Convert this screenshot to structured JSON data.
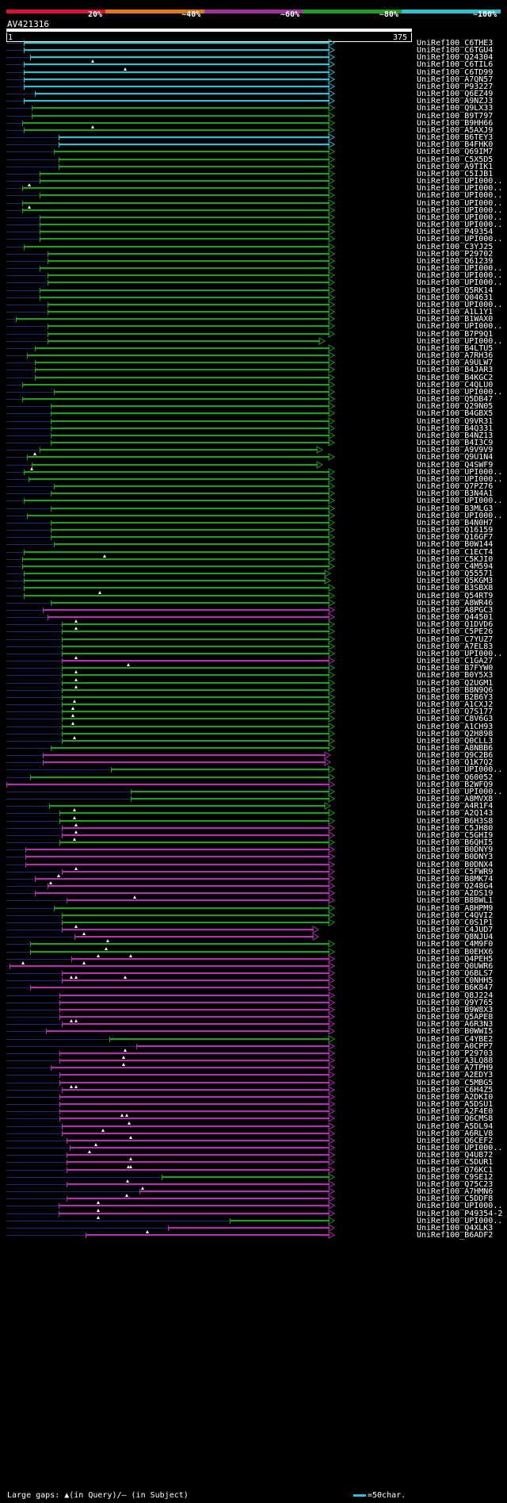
{
  "legend": {
    "colors": [
      "#d81430",
      "#e0761c",
      "#a0309c",
      "#229c22",
      "#30c0d0"
    ],
    "labels": [
      "20%",
      "~40%",
      "~60%",
      "~80%",
      "~100%"
    ]
  },
  "query": {
    "name": "AV421316",
    "start": "1",
    "end": "375"
  },
  "footer": {
    "text": "Large gaps: ▲(in Query)/– (in Subject)",
    "scale_key": "=50char."
  },
  "hits": [
    {
      "name": "UniRef100_C6THE3",
      "c": "c",
      "s": 30,
      "e": 420
    },
    {
      "name": "UniRef100_C6TGU4",
      "c": "c",
      "s": 30,
      "e": 420
    },
    {
      "name": "UniRef100_Q24304",
      "c": "c",
      "s": 38,
      "e": 420
    },
    {
      "name": "UniRef100_C6TIL6",
      "c": "c",
      "s": 30,
      "e": 420,
      "q": [
        117
      ]
    },
    {
      "name": "UniRef100_C6TD99",
      "c": "c",
      "s": 30,
      "e": 420,
      "q": [
        158
      ]
    },
    {
      "name": "UniRef100_A7QN57",
      "c": "c",
      "s": 30,
      "e": 420
    },
    {
      "name": "UniRef100_P93227",
      "c": "c",
      "s": 30,
      "e": 420
    },
    {
      "name": "UniRef100_Q6EZ49",
      "c": "c",
      "s": 44,
      "e": 420
    },
    {
      "name": "UniRef100_A9NZJ3",
      "c": "c",
      "s": 30,
      "e": 420
    },
    {
      "name": "UniRef100_Q9LX33",
      "c": "g",
      "s": 40,
      "e": 420
    },
    {
      "name": "UniRef100_B9T797",
      "c": "g",
      "s": 40,
      "e": 420
    },
    {
      "name": "UniRef100_B9HH66",
      "c": "g",
      "s": 28,
      "e": 420
    },
    {
      "name": "UniRef100_A5AXJ9",
      "c": "g",
      "s": 30,
      "e": 420,
      "q": [
        117
      ]
    },
    {
      "name": "UniRef100_B6TEY3",
      "c": "c",
      "s": 74,
      "e": 420
    },
    {
      "name": "UniRef100_B4FHK0",
      "c": "c",
      "s": 74,
      "e": 420
    },
    {
      "name": "UniRef100_Q69IM7",
      "c": "g",
      "s": 68,
      "e": 420
    },
    {
      "name": "UniRef100_C5X5D5",
      "c": "g",
      "s": 74,
      "e": 420
    },
    {
      "name": "UniRef100_A9TIK1",
      "c": "g",
      "s": 74,
      "e": 420
    },
    {
      "name": "UniRef100_C5IJB1",
      "c": "g",
      "s": 50,
      "e": 420
    },
    {
      "name": "UniRef100_UPI000..",
      "c": "g",
      "s": 50,
      "e": 420
    },
    {
      "name": "UniRef100_UPI000..",
      "c": "g",
      "s": 28,
      "e": 420,
      "q": [
        37
      ]
    },
    {
      "name": "UniRef100_UPI000..",
      "c": "g",
      "s": 50,
      "e": 420
    },
    {
      "name": "UniRef100_UPI000..",
      "c": "g",
      "s": 28,
      "e": 420
    },
    {
      "name": "UniRef100_UPI000..",
      "c": "g",
      "s": 28,
      "e": 420,
      "q": [
        37
      ]
    },
    {
      "name": "UniRef100_UPI000..",
      "c": "g",
      "s": 50,
      "e": 420
    },
    {
      "name": "UniRef100_UPI000..",
      "c": "g",
      "s": 50,
      "e": 420
    },
    {
      "name": "UniRef100_P49354",
      "c": "g",
      "s": 50,
      "e": 420
    },
    {
      "name": "UniRef100_UPI000..",
      "c": "g",
      "s": 50,
      "e": 420
    },
    {
      "name": "UniRef100_C3YJ25",
      "c": "g",
      "s": 30,
      "e": 420
    },
    {
      "name": "UniRef100_P29702",
      "c": "g",
      "s": 60,
      "e": 420
    },
    {
      "name": "UniRef100_Q61239",
      "c": "g",
      "s": 60,
      "e": 420
    },
    {
      "name": "UniRef100_UPI000..",
      "c": "g",
      "s": 50,
      "e": 420
    },
    {
      "name": "UniRef100_UPI000..",
      "c": "g",
      "s": 60,
      "e": 420
    },
    {
      "name": "UniRef100_UPI000..",
      "c": "g",
      "s": 60,
      "e": 420
    },
    {
      "name": "UniRef100_Q5RK14",
      "c": "g",
      "s": 50,
      "e": 420
    },
    {
      "name": "UniRef100_Q04631",
      "c": "g",
      "s": 50,
      "e": 420
    },
    {
      "name": "UniRef100_UPI000..",
      "c": "g",
      "s": 60,
      "e": 420
    },
    {
      "name": "UniRef100_A1L1Y1",
      "c": "g",
      "s": 60,
      "e": 420
    },
    {
      "name": "UniRef100_B1WAX0",
      "c": "g",
      "s": 20,
      "e": 420
    },
    {
      "name": "UniRef100_UPI000..",
      "c": "g",
      "s": 60,
      "e": 420
    },
    {
      "name": "UniRef100_B7P9Q1",
      "c": "g",
      "s": 60,
      "e": 420
    },
    {
      "name": "UniRef100_UPI000..",
      "c": "g",
      "s": 60,
      "e": 408
    },
    {
      "name": "UniRef100_B4LTU5",
      "c": "g",
      "s": 44,
      "e": 420
    },
    {
      "name": "UniRef100_A7RH36",
      "c": "g",
      "s": 34,
      "e": 420
    },
    {
      "name": "UniRef100_A9ULW7",
      "c": "g",
      "s": 44,
      "e": 420
    },
    {
      "name": "UniRef100_B4JAR3",
      "c": "g",
      "s": 44,
      "e": 420
    },
    {
      "name": "UniRef100_B4KGC2",
      "c": "g",
      "s": 44,
      "e": 420
    },
    {
      "name": "UniRef100_C4QLU0",
      "c": "g",
      "s": 28,
      "e": 420
    },
    {
      "name": "UniRef100_UPI000..",
      "c": "g",
      "s": 68,
      "e": 420
    },
    {
      "name": "UniRef100_Q5DB47",
      "c": "g",
      "s": 28,
      "e": 420
    },
    {
      "name": "UniRef100_Q29N05",
      "c": "g",
      "s": 64,
      "e": 420
    },
    {
      "name": "UniRef100_B4GBX5",
      "c": "g",
      "s": 64,
      "e": 420
    },
    {
      "name": "UniRef100_Q9VR31",
      "c": "g",
      "s": 64,
      "e": 420
    },
    {
      "name": "UniRef100_B4Q331",
      "c": "g",
      "s": 64,
      "e": 420
    },
    {
      "name": "UniRef100_B4NZ13",
      "c": "g",
      "s": 64,
      "e": 420
    },
    {
      "name": "UniRef100_B4I3C9",
      "c": "g",
      "s": 64,
      "e": 420
    },
    {
      "name": "UniRef100_A9V9V9",
      "c": "g",
      "s": 50,
      "e": 405
    },
    {
      "name": "UniRef100_Q9U1N4",
      "c": "g",
      "s": 34,
      "e": 420,
      "q": [
        44
      ]
    },
    {
      "name": "UniRef100_Q4SWF9",
      "c": "g",
      "s": 40,
      "e": 405
    },
    {
      "name": "UniRef100_UPI000..",
      "c": "g",
      "s": 30,
      "e": 420,
      "q": [
        40
      ]
    },
    {
      "name": "UniRef100_UPI000..",
      "c": "g",
      "s": 36,
      "e": 420
    },
    {
      "name": "UniRef100_Q7PZ76",
      "c": "g",
      "s": 68,
      "e": 420
    },
    {
      "name": "UniRef100_B3N4A1",
      "c": "g",
      "s": 64,
      "e": 420
    },
    {
      "name": "UniRef100_UPI000..",
      "c": "g",
      "s": 30,
      "e": 420
    },
    {
      "name": "UniRef100_B3MLG3",
      "c": "g",
      "s": 64,
      "e": 420
    },
    {
      "name": "UniRef100_UPI000..",
      "c": "g",
      "s": 34,
      "e": 420
    },
    {
      "name": "UniRef100_B4N0H7",
      "c": "g",
      "s": 64,
      "e": 420
    },
    {
      "name": "UniRef100_Q16159",
      "c": "g",
      "s": 64,
      "e": 420
    },
    {
      "name": "UniRef100_Q16GF7",
      "c": "g",
      "s": 64,
      "e": 420
    },
    {
      "name": "UniRef100_B0W144",
      "c": "g",
      "s": 68,
      "e": 420
    },
    {
      "name": "UniRef100_C1ECT4",
      "c": "g",
      "s": 30,
      "e": 420
    },
    {
      "name": "UniRef100_C5KJI0",
      "c": "g",
      "s": 28,
      "e": 420,
      "q": [
        132
      ]
    },
    {
      "name": "UniRef100_C4M594",
      "c": "g",
      "s": 28,
      "e": 420
    },
    {
      "name": "UniRef100_Q55571",
      "c": "g",
      "s": 30,
      "e": 415
    },
    {
      "name": "UniRef100_Q5KGM3",
      "c": "g",
      "s": 30,
      "e": 415
    },
    {
      "name": "UniRef100_B3SBX8",
      "c": "g",
      "s": 30,
      "e": 420
    },
    {
      "name": "UniRef100_Q54RT9",
      "c": "g",
      "s": 30,
      "e": 420,
      "q": [
        126
      ]
    },
    {
      "name": "UniRef100_A8WR46",
      "c": "g",
      "s": 64,
      "e": 420
    },
    {
      "name": "UniRef100_A8PGC3",
      "c": "m",
      "s": 54,
      "e": 420
    },
    {
      "name": "UniRef100_Q44501",
      "c": "m",
      "s": 60,
      "e": 420
    },
    {
      "name": "UniRef100_Q1DVD6",
      "c": "g",
      "s": 78,
      "e": 420,
      "q": [
        96
      ]
    },
    {
      "name": "UniRef100_C5PE26",
      "c": "g",
      "s": 78,
      "e": 420,
      "q": [
        96
      ]
    },
    {
      "name": "UniRef100_C7YUZ7",
      "c": "g",
      "s": 78,
      "e": 420
    },
    {
      "name": "UniRef100_A7EL83",
      "c": "g",
      "s": 78,
      "e": 420
    },
    {
      "name": "UniRef100_UPI000..",
      "c": "g",
      "s": 78,
      "e": 420
    },
    {
      "name": "UniRef100_C1GA27",
      "c": "m",
      "s": 78,
      "e": 420,
      "q": [
        96
      ]
    },
    {
      "name": "UniRef100_B7FYW0",
      "c": "g",
      "s": 78,
      "e": 420,
      "q": [
        162
      ]
    },
    {
      "name": "UniRef100_B0Y5X3",
      "c": "g",
      "s": 78,
      "e": 420,
      "q": [
        96
      ]
    },
    {
      "name": "UniRef100_Q2UGM1",
      "c": "g",
      "s": 78,
      "e": 420,
      "q": [
        96
      ]
    },
    {
      "name": "UniRef100_B8N9Q6",
      "c": "g",
      "s": 78,
      "e": 420,
      "q": [
        96
      ]
    },
    {
      "name": "UniRef100_B2B6Y3",
      "c": "g",
      "s": 78,
      "e": 420
    },
    {
      "name": "UniRef100_A1CXJ2",
      "c": "g",
      "s": 78,
      "e": 420,
      "q": [
        94
      ]
    },
    {
      "name": "UniRef100_Q7S177",
      "c": "g",
      "s": 78,
      "e": 420,
      "q": [
        92
      ]
    },
    {
      "name": "UniRef100_C8V6G3",
      "c": "g",
      "s": 78,
      "e": 420,
      "q": [
        92
      ]
    },
    {
      "name": "UniRef100_A1CH93",
      "c": "g",
      "s": 78,
      "e": 420,
      "q": [
        92
      ]
    },
    {
      "name": "UniRef100_Q2H898",
      "c": "g",
      "s": 78,
      "e": 420
    },
    {
      "name": "UniRef100_Q0CLL3",
      "c": "g",
      "s": 78,
      "e": 420,
      "q": [
        94
      ]
    },
    {
      "name": "UniRef100_A8NBB6",
      "c": "g",
      "s": 64,
      "e": 420
    },
    {
      "name": "UniRef100_Q9C2B6",
      "c": "m",
      "s": 54,
      "e": 415
    },
    {
      "name": "UniRef100_Q1K7Q2",
      "c": "m",
      "s": 54,
      "e": 415
    },
    {
      "name": "UniRef100_UPI000..",
      "c": "g",
      "s": 140,
      "e": 420
    },
    {
      "name": "UniRef100_Q60052",
      "c": "g",
      "s": 38,
      "e": 420
    },
    {
      "name": "UniRef100_B2WFQ9",
      "c": "m",
      "s": 8,
      "e": 420
    },
    {
      "name": "UniRef100_UPI000..",
      "c": "g",
      "s": 165,
      "e": 420
    },
    {
      "name": "UniRef100_A8MVX8",
      "c": "g",
      "s": 165,
      "e": 420
    },
    {
      "name": "UniRef100_A4R1F4",
      "c": "g",
      "s": 62,
      "e": 415
    },
    {
      "name": "UniRef100_A2Q143",
      "c": "g",
      "s": 75,
      "e": 420,
      "q": [
        94
      ]
    },
    {
      "name": "UniRef100_B6H3S8",
      "c": "g",
      "s": 75,
      "e": 420,
      "q": [
        94
      ]
    },
    {
      "name": "UniRef100_C5JH80",
      "c": "m",
      "s": 78,
      "e": 420,
      "q": [
        96
      ]
    },
    {
      "name": "UniRef100_C5GHI9",
      "c": "m",
      "s": 78,
      "e": 420,
      "q": [
        96
      ]
    },
    {
      "name": "UniRef100_B6QHI5",
      "c": "g",
      "s": 75,
      "e": 420,
      "q": [
        94
      ]
    },
    {
      "name": "UniRef100_B0DNY9",
      "c": "m",
      "s": 32,
      "e": 420
    },
    {
      "name": "UniRef100_B0DNY3",
      "c": "m",
      "s": 32,
      "e": 420
    },
    {
      "name": "UniRef100_B0DNX4",
      "c": "m",
      "s": 32,
      "e": 420
    },
    {
      "name": "UniRef100_C5FWR9",
      "c": "m",
      "s": 78,
      "e": 420,
      "q": [
        96
      ]
    },
    {
      "name": "UniRef100_B8MK74",
      "c": "m",
      "s": 44,
      "e": 420,
      "q": [
        74
      ]
    },
    {
      "name": "UniRef100_Q248G4",
      "c": "m",
      "s": 60,
      "e": 420,
      "q": [
        64
      ]
    },
    {
      "name": "UniRef100_A2DS19",
      "c": "m",
      "s": 44,
      "e": 420
    },
    {
      "name": "UniRef100_B8BWL1",
      "c": "m",
      "s": 84,
      "e": 420,
      "q": [
        170
      ]
    },
    {
      "name": "UniRef100_A8HPM9",
      "c": "g",
      "s": 68,
      "e": 420
    },
    {
      "name": "UniRef100_C4QVI2",
      "c": "g",
      "s": 78,
      "e": 420
    },
    {
      "name": "UniRef100_C0S1P1",
      "c": "g",
      "s": 78,
      "e": 420
    },
    {
      "name": "UniRef100_C4JUD7",
      "c": "m",
      "s": 78,
      "e": 400,
      "q": [
        96
      ]
    },
    {
      "name": "UniRef100_Q8NJU4",
      "c": "m",
      "s": 94,
      "e": 400,
      "q": [
        106
      ]
    },
    {
      "name": "UniRef100_C4M9F0",
      "c": "g",
      "s": 38,
      "e": 420,
      "q": [
        136
      ]
    },
    {
      "name": "UniRef100_B0EHX6",
      "c": "g",
      "s": 38,
      "e": 420,
      "q": [
        134
      ]
    },
    {
      "name": "UniRef100_Q4PEH5",
      "c": "m",
      "s": 90,
      "e": 420,
      "q": [
        124,
        165
      ]
    },
    {
      "name": "UniRef100_Q0UWR6",
      "c": "m",
      "s": 12,
      "e": 420,
      "q": [
        29,
        106
      ]
    },
    {
      "name": "UniRef100_Q6BLS7",
      "c": "m",
      "s": 78,
      "e": 420
    },
    {
      "name": "UniRef100_C0NHH5",
      "c": "m",
      "s": 78,
      "e": 420,
      "q": [
        90,
        96,
        158
      ]
    },
    {
      "name": "UniRef100_B6K847",
      "c": "m",
      "s": 38,
      "e": 420
    },
    {
      "name": "UniRef100_Q8J224",
      "c": "m",
      "s": 75,
      "e": 420
    },
    {
      "name": "UniRef100_Q9Y765",
      "c": "m",
      "s": 75,
      "e": 420
    },
    {
      "name": "UniRef100_B9W8X3",
      "c": "m",
      "s": 75,
      "e": 420
    },
    {
      "name": "UniRef100_Q5APE8",
      "c": "m",
      "s": 75,
      "e": 420
    },
    {
      "name": "UniRef100_A6R3N3",
      "c": "m",
      "s": 78,
      "e": 420,
      "q": [
        90,
        96
      ]
    },
    {
      "name": "UniRef100_B0WWI5",
      "c": "m",
      "s": 58,
      "e": 420
    },
    {
      "name": "UniRef100_C4YBE2",
      "c": "g",
      "s": 138,
      "e": 420
    },
    {
      "name": "UniRef100_A0CPP7",
      "c": "m",
      "s": 172,
      "e": 420
    },
    {
      "name": "UniRef100_P29703",
      "c": "m",
      "s": 75,
      "e": 420,
      "q": [
        158
      ]
    },
    {
      "name": "UniRef100_A3LQ88",
      "c": "m",
      "s": 75,
      "e": 420,
      "q": [
        156
      ]
    },
    {
      "name": "UniRef100_A7TPH9",
      "c": "m",
      "s": 64,
      "e": 420,
      "q": [
        156
      ]
    },
    {
      "name": "UniRef100_A2EDY3",
      "c": "m",
      "s": 75,
      "e": 420
    },
    {
      "name": "UniRef100_C5MBG5",
      "c": "m",
      "s": 75,
      "e": 420
    },
    {
      "name": "UniRef100_C6H4Z5",
      "c": "m",
      "s": 78,
      "e": 420,
      "q": [
        90,
        96
      ]
    },
    {
      "name": "UniRef100_A2DKI0",
      "c": "m",
      "s": 75,
      "e": 420
    },
    {
      "name": "UniRef100_A5DSU1",
      "c": "m",
      "s": 75,
      "e": 420
    },
    {
      "name": "UniRef100_A2F4E0",
      "c": "m",
      "s": 75,
      "e": 420
    },
    {
      "name": "UniRef100_Q6CMS8",
      "c": "m",
      "s": 75,
      "e": 420,
      "q": [
        154,
        160
      ]
    },
    {
      "name": "UniRef100_A5DL94",
      "c": "m",
      "s": 78,
      "e": 420,
      "q": [
        163
      ]
    },
    {
      "name": "UniRef100_A6RLV8",
      "c": "m",
      "s": 78,
      "e": 420,
      "q": [
        130
      ]
    },
    {
      "name": "UniRef100_Q6CEF2",
      "c": "m",
      "s": 84,
      "e": 420,
      "q": [
        165
      ]
    },
    {
      "name": "UniRef100_UPI000..",
      "c": "m",
      "s": 88,
      "e": 420,
      "q": [
        121
      ]
    },
    {
      "name": "UniRef100_Q4UB72",
      "c": "m",
      "s": 84,
      "e": 420,
      "q": [
        113
      ]
    },
    {
      "name": "UniRef100_C5DUR1",
      "c": "m",
      "s": 84,
      "e": 420,
      "q": [
        165
      ]
    },
    {
      "name": "UniRef100_Q76KC1",
      "c": "m",
      "s": 84,
      "e": 420,
      "q": [
        162,
        165
      ]
    },
    {
      "name": "UniRef100_C9SE12",
      "c": "g",
      "s": 204,
      "e": 420
    },
    {
      "name": "UniRef100_Q75C23",
      "c": "m",
      "s": 84,
      "e": 420,
      "q": [
        161
      ]
    },
    {
      "name": "UniRef100_A7HMN6",
      "c": "m",
      "s": 176,
      "e": 420,
      "q": [
        180
      ]
    },
    {
      "name": "UniRef100_C5DDF8",
      "c": "m",
      "s": 84,
      "e": 420,
      "q": [
        160
      ]
    },
    {
      "name": "UniRef100_UPI000..",
      "c": "m",
      "s": 74,
      "e": 420,
      "q": [
        124
      ]
    },
    {
      "name": "UniRef100_P49354-2",
      "c": "m",
      "s": 74,
      "e": 420,
      "q": [
        124
      ]
    },
    {
      "name": "UniRef100_UPI000..",
      "c": "g",
      "s": 290,
      "e": 420,
      "q": [
        124
      ]
    },
    {
      "name": "UniRef100_Q4XLK3",
      "c": "m",
      "s": 212,
      "e": 420
    },
    {
      "name": "UniRef100_B6ADF2",
      "c": "m",
      "s": 108,
      "e": 420,
      "q": [
        186
      ]
    }
  ]
}
